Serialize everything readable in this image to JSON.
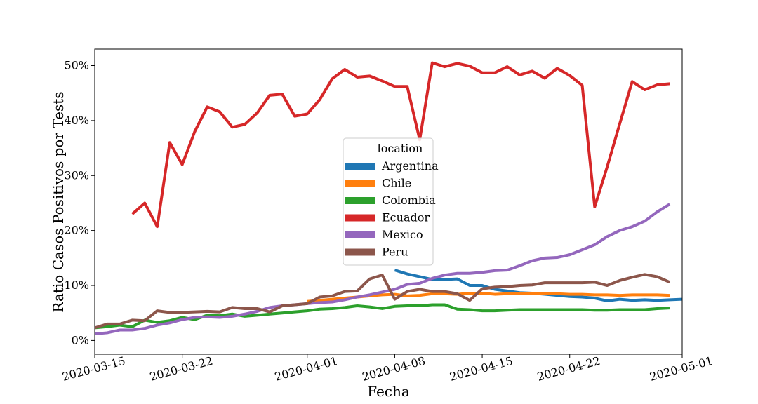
{
  "chart_data": {
    "type": "line",
    "xlabel": "Fecha",
    "ylabel": "Ratio Casos Positivos por Tests",
    "xlim": [
      "2020-03-15",
      "2020-05-01"
    ],
    "ylim": [
      -2.5,
      53
    ],
    "x_ticks": [
      "2020-03-15",
      "2020-03-22",
      "2020-04-01",
      "2020-04-08",
      "2020-04-15",
      "2020-04-22",
      "2020-05-01"
    ],
    "y_ticks": [
      0,
      10,
      20,
      30,
      40,
      50
    ],
    "y_tick_labels": [
      "0%",
      "10%",
      "20%",
      "30%",
      "40%",
      "50%"
    ],
    "grid": false,
    "legend": {
      "title": "location",
      "position": "center"
    },
    "series": [
      {
        "name": "Argentina",
        "color": "#1f77b4",
        "x": [
          "2020-04-08",
          "2020-04-09",
          "2020-04-10",
          "2020-04-11",
          "2020-04-12",
          "2020-04-13",
          "2020-04-14",
          "2020-04-15",
          "2020-04-16",
          "2020-04-17",
          "2020-04-18",
          "2020-04-19",
          "2020-04-20",
          "2020-04-21",
          "2020-04-22",
          "2020-04-23",
          "2020-04-24",
          "2020-04-25",
          "2020-04-26",
          "2020-04-27",
          "2020-04-28",
          "2020-04-29",
          "2020-04-30",
          "2020-05-01"
        ],
        "values": [
          12.8,
          12.1,
          11.6,
          11.1,
          11.1,
          11.2,
          10.0,
          10.0,
          9.3,
          9.0,
          8.7,
          8.6,
          8.4,
          8.2,
          8.0,
          7.9,
          7.7,
          7.2,
          7.5,
          7.3,
          7.4,
          7.3,
          7.4,
          7.5
        ]
      },
      {
        "name": "Chile",
        "color": "#ff7f0e",
        "x": [
          "2020-04-01",
          "2020-04-02",
          "2020-04-03",
          "2020-04-04",
          "2020-04-05",
          "2020-04-06",
          "2020-04-07",
          "2020-04-08",
          "2020-04-09",
          "2020-04-10",
          "2020-04-11",
          "2020-04-12",
          "2020-04-13",
          "2020-04-14",
          "2020-04-15",
          "2020-04-16",
          "2020-04-17",
          "2020-04-18",
          "2020-04-19",
          "2020-04-20",
          "2020-04-21",
          "2020-04-22",
          "2020-04-23",
          "2020-04-24",
          "2020-04-25",
          "2020-04-26",
          "2020-04-27",
          "2020-04-28",
          "2020-04-29",
          "2020-04-30"
        ],
        "values": [
          7.1,
          7.3,
          7.5,
          7.7,
          7.9,
          8.1,
          8.3,
          8.4,
          8.1,
          8.2,
          8.5,
          8.5,
          8.4,
          8.6,
          8.6,
          8.4,
          8.5,
          8.5,
          8.6,
          8.5,
          8.5,
          8.4,
          8.4,
          8.3,
          8.3,
          8.2,
          8.3,
          8.3,
          8.3,
          8.2
        ]
      },
      {
        "name": "Colombia",
        "color": "#2ca02c",
        "x": [
          "2020-03-15",
          "2020-03-16",
          "2020-03-17",
          "2020-03-18",
          "2020-03-19",
          "2020-03-20",
          "2020-03-21",
          "2020-03-22",
          "2020-03-23",
          "2020-03-24",
          "2020-03-25",
          "2020-03-26",
          "2020-03-27",
          "2020-03-28",
          "2020-03-29",
          "2020-03-30",
          "2020-03-31",
          "2020-04-01",
          "2020-04-02",
          "2020-04-03",
          "2020-04-04",
          "2020-04-05",
          "2020-04-06",
          "2020-04-07",
          "2020-04-08",
          "2020-04-09",
          "2020-04-10",
          "2020-04-11",
          "2020-04-12",
          "2020-04-13",
          "2020-04-14",
          "2020-04-15",
          "2020-04-16",
          "2020-04-17",
          "2020-04-18",
          "2020-04-19",
          "2020-04-20",
          "2020-04-21",
          "2020-04-22",
          "2020-04-23",
          "2020-04-24",
          "2020-04-25",
          "2020-04-26",
          "2020-04-27",
          "2020-04-28",
          "2020-04-29",
          "2020-04-30"
        ],
        "values": [
          2.3,
          2.5,
          2.8,
          2.5,
          3.7,
          3.3,
          3.6,
          4.2,
          3.8,
          4.6,
          4.5,
          4.8,
          4.4,
          4.6,
          4.8,
          5.0,
          5.2,
          5.4,
          5.7,
          5.8,
          6.0,
          6.3,
          6.1,
          5.8,
          6.2,
          6.3,
          6.3,
          6.5,
          6.5,
          5.7,
          5.6,
          5.4,
          5.4,
          5.5,
          5.6,
          5.6,
          5.6,
          5.6,
          5.6,
          5.6,
          5.5,
          5.5,
          5.6,
          5.6,
          5.6,
          5.8,
          5.9
        ]
      },
      {
        "name": "Ecuador",
        "color": "#d62728",
        "x": [
          "2020-03-18",
          "2020-03-19",
          "2020-03-20",
          "2020-03-21",
          "2020-03-22",
          "2020-03-23",
          "2020-03-24",
          "2020-03-25",
          "2020-03-26",
          "2020-03-27",
          "2020-03-28",
          "2020-03-29",
          "2020-03-30",
          "2020-03-31",
          "2020-04-01",
          "2020-04-02",
          "2020-04-03",
          "2020-04-04",
          "2020-04-05",
          "2020-04-06",
          "2020-04-07",
          "2020-04-08",
          "2020-04-09",
          "2020-04-10",
          "2020-04-11",
          "2020-04-12",
          "2020-04-13",
          "2020-04-14",
          "2020-04-15",
          "2020-04-16",
          "2020-04-17",
          "2020-04-18",
          "2020-04-19",
          "2020-04-20",
          "2020-04-21",
          "2020-04-22",
          "2020-04-23",
          "2020-04-24",
          "2020-04-25",
          "2020-04-26",
          "2020-04-27",
          "2020-04-28",
          "2020-04-29",
          "2020-04-30"
        ],
        "values": [
          23.0,
          25.0,
          20.7,
          36.0,
          32.0,
          38.0,
          42.5,
          41.6,
          38.8,
          39.3,
          41.4,
          44.6,
          44.8,
          40.8,
          41.2,
          43.8,
          47.6,
          49.3,
          47.9,
          48.1,
          47.2,
          46.2,
          46.2,
          36.5,
          50.5,
          49.8,
          50.4,
          49.9,
          48.7,
          48.7,
          49.8,
          48.3,
          49.0,
          47.7,
          49.5,
          48.2,
          46.4,
          24.3,
          31.6,
          39.4,
          47.1,
          45.6,
          46.5,
          46.7
        ]
      },
      {
        "name": "Mexico",
        "color": "#9467bd",
        "x": [
          "2020-03-15",
          "2020-03-16",
          "2020-03-17",
          "2020-03-18",
          "2020-03-19",
          "2020-03-20",
          "2020-03-21",
          "2020-03-22",
          "2020-03-23",
          "2020-03-24",
          "2020-03-25",
          "2020-03-26",
          "2020-03-27",
          "2020-03-28",
          "2020-03-29",
          "2020-03-30",
          "2020-03-31",
          "2020-04-01",
          "2020-04-02",
          "2020-04-03",
          "2020-04-04",
          "2020-04-05",
          "2020-04-06",
          "2020-04-07",
          "2020-04-08",
          "2020-04-09",
          "2020-04-10",
          "2020-04-11",
          "2020-04-12",
          "2020-04-13",
          "2020-04-14",
          "2020-04-15",
          "2020-04-16",
          "2020-04-17",
          "2020-04-18",
          "2020-04-19",
          "2020-04-20",
          "2020-04-21",
          "2020-04-22",
          "2020-04-23",
          "2020-04-24",
          "2020-04-25",
          "2020-04-26",
          "2020-04-27",
          "2020-04-28",
          "2020-04-29",
          "2020-04-30"
        ],
        "values": [
          1.2,
          1.4,
          1.9,
          1.9,
          2.2,
          2.8,
          3.2,
          3.8,
          4.2,
          4.3,
          4.2,
          4.4,
          4.8,
          5.3,
          6.0,
          6.3,
          6.5,
          6.7,
          6.9,
          7.0,
          7.4,
          7.9,
          8.3,
          8.8,
          9.3,
          10.2,
          10.4,
          11.3,
          11.9,
          12.2,
          12.2,
          12.4,
          12.7,
          12.8,
          13.6,
          14.5,
          15.0,
          15.1,
          15.6,
          16.5,
          17.4,
          18.9,
          20.0,
          20.7,
          21.7,
          23.4,
          24.8
        ]
      },
      {
        "name": "Peru",
        "color": "#8c564b",
        "x": [
          "2020-03-15",
          "2020-03-16",
          "2020-03-17",
          "2020-03-18",
          "2020-03-19",
          "2020-03-20",
          "2020-03-21",
          "2020-03-22",
          "2020-03-23",
          "2020-03-24",
          "2020-03-25",
          "2020-03-26",
          "2020-03-27",
          "2020-03-28",
          "2020-03-29",
          "2020-03-30",
          "2020-03-31",
          "2020-04-01",
          "2020-04-02",
          "2020-04-03",
          "2020-04-04",
          "2020-04-05",
          "2020-04-06",
          "2020-04-07",
          "2020-04-08",
          "2020-04-09",
          "2020-04-10",
          "2020-04-11",
          "2020-04-12",
          "2020-04-13",
          "2020-04-14",
          "2020-04-15",
          "2020-04-16",
          "2020-04-17",
          "2020-04-18",
          "2020-04-19",
          "2020-04-20",
          "2020-04-21",
          "2020-04-22",
          "2020-04-23",
          "2020-04-24",
          "2020-04-25",
          "2020-04-26",
          "2020-04-27",
          "2020-04-28",
          "2020-04-29",
          "2020-04-30"
        ],
        "values": [
          2.3,
          3.0,
          3.0,
          3.7,
          3.6,
          5.4,
          5.1,
          5.1,
          5.2,
          5.3,
          5.2,
          6.0,
          5.8,
          5.8,
          5.2,
          6.3,
          6.5,
          6.7,
          7.9,
          8.1,
          8.9,
          9.0,
          11.2,
          11.9,
          7.5,
          8.9,
          9.3,
          8.9,
          8.9,
          8.5,
          7.3,
          9.4,
          9.7,
          9.8,
          10.0,
          10.1,
          10.5,
          10.5,
          10.5,
          10.5,
          10.6,
          10.0,
          10.9,
          11.5,
          12.0,
          11.6,
          10.6
        ]
      }
    ]
  }
}
